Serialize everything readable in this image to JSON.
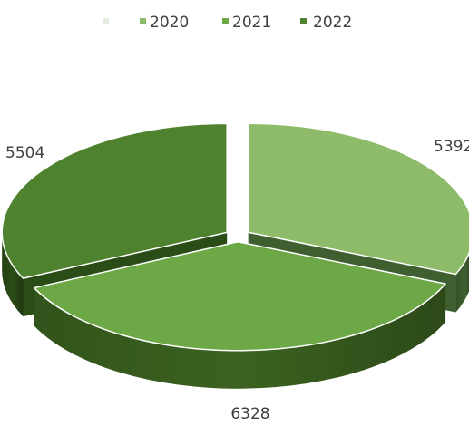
{
  "chart_data": {
    "type": "pie",
    "style": "3d-exploded",
    "legend_position": "top",
    "legend": [
      {
        "label": "",
        "color": "#E3EBDD"
      },
      {
        "label": "2020",
        "color": "#8DBB6A"
      },
      {
        "label": "2021",
        "color": "#6CA845"
      },
      {
        "label": "2022",
        "color": "#4F822F"
      }
    ],
    "slices": [
      {
        "category": "2020",
        "value": 5392,
        "label": "5392",
        "color": "#8DBB6A",
        "side_color": "#3F5F30"
      },
      {
        "category": "2021",
        "value": 6328,
        "label": "6328",
        "color": "#6CA845",
        "side_color": "#3B6220"
      },
      {
        "category": "2022",
        "value": 5504,
        "label": "5504",
        "color": "#4F822F",
        "side_color": "#2A4C16"
      }
    ]
  }
}
